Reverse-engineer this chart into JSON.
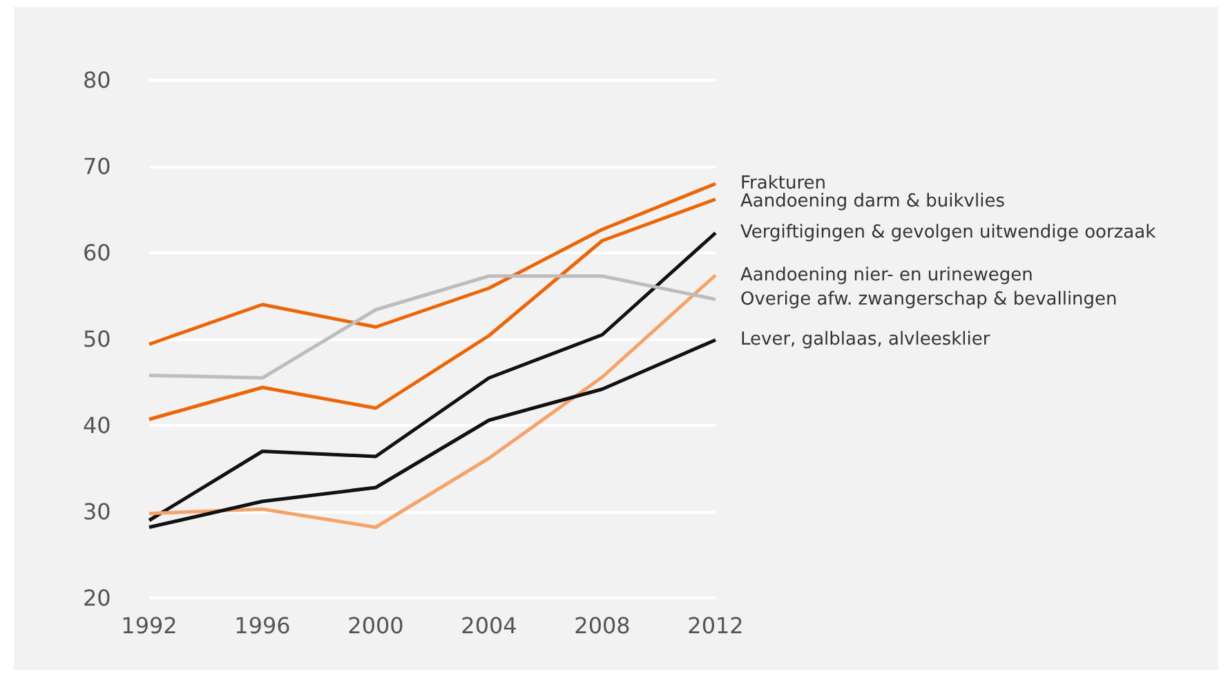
{
  "chart_data": {
    "type": "line",
    "categories": [
      "1992",
      "1996",
      "2000",
      "2004",
      "2008",
      "2012"
    ],
    "series": [
      {
        "name": "Frakturen",
        "color": "#ec6608",
        "values": [
          49.4,
          54.0,
          51.4,
          55.9,
          62.7,
          68.0
        ]
      },
      {
        "name": "Aandoening darm & buikvlies",
        "color": "#ec6608",
        "values": [
          40.7,
          44.4,
          42.0,
          50.4,
          61.4,
          66.2
        ]
      },
      {
        "name": "Vergiftigingen & gevolgen uitwendige oorzaak",
        "color": "#111111",
        "values": [
          29.0,
          37.0,
          36.4,
          45.5,
          50.5,
          62.3
        ]
      },
      {
        "name": "Aandoening nier- en urinewegen",
        "color": "#f5a36a",
        "values": [
          29.8,
          30.3,
          28.2,
          36.2,
          45.6,
          57.4
        ]
      },
      {
        "name": "Overige afw. zwangerschap & bevallingen",
        "color": "#bdbdbd",
        "values": [
          45.8,
          45.5,
          53.4,
          57.3,
          57.3,
          54.6
        ]
      },
      {
        "name": "Lever, galblaas, alvleesklier",
        "color": "#111111",
        "values": [
          28.2,
          31.2,
          32.8,
          40.6,
          44.2,
          49.9
        ]
      }
    ],
    "ylim": [
      20,
      80
    ],
    "yticks": [
      20,
      30,
      40,
      50,
      60,
      70,
      80
    ],
    "grid": "y",
    "legend": false,
    "marker": "none",
    "line_style": "solid"
  }
}
